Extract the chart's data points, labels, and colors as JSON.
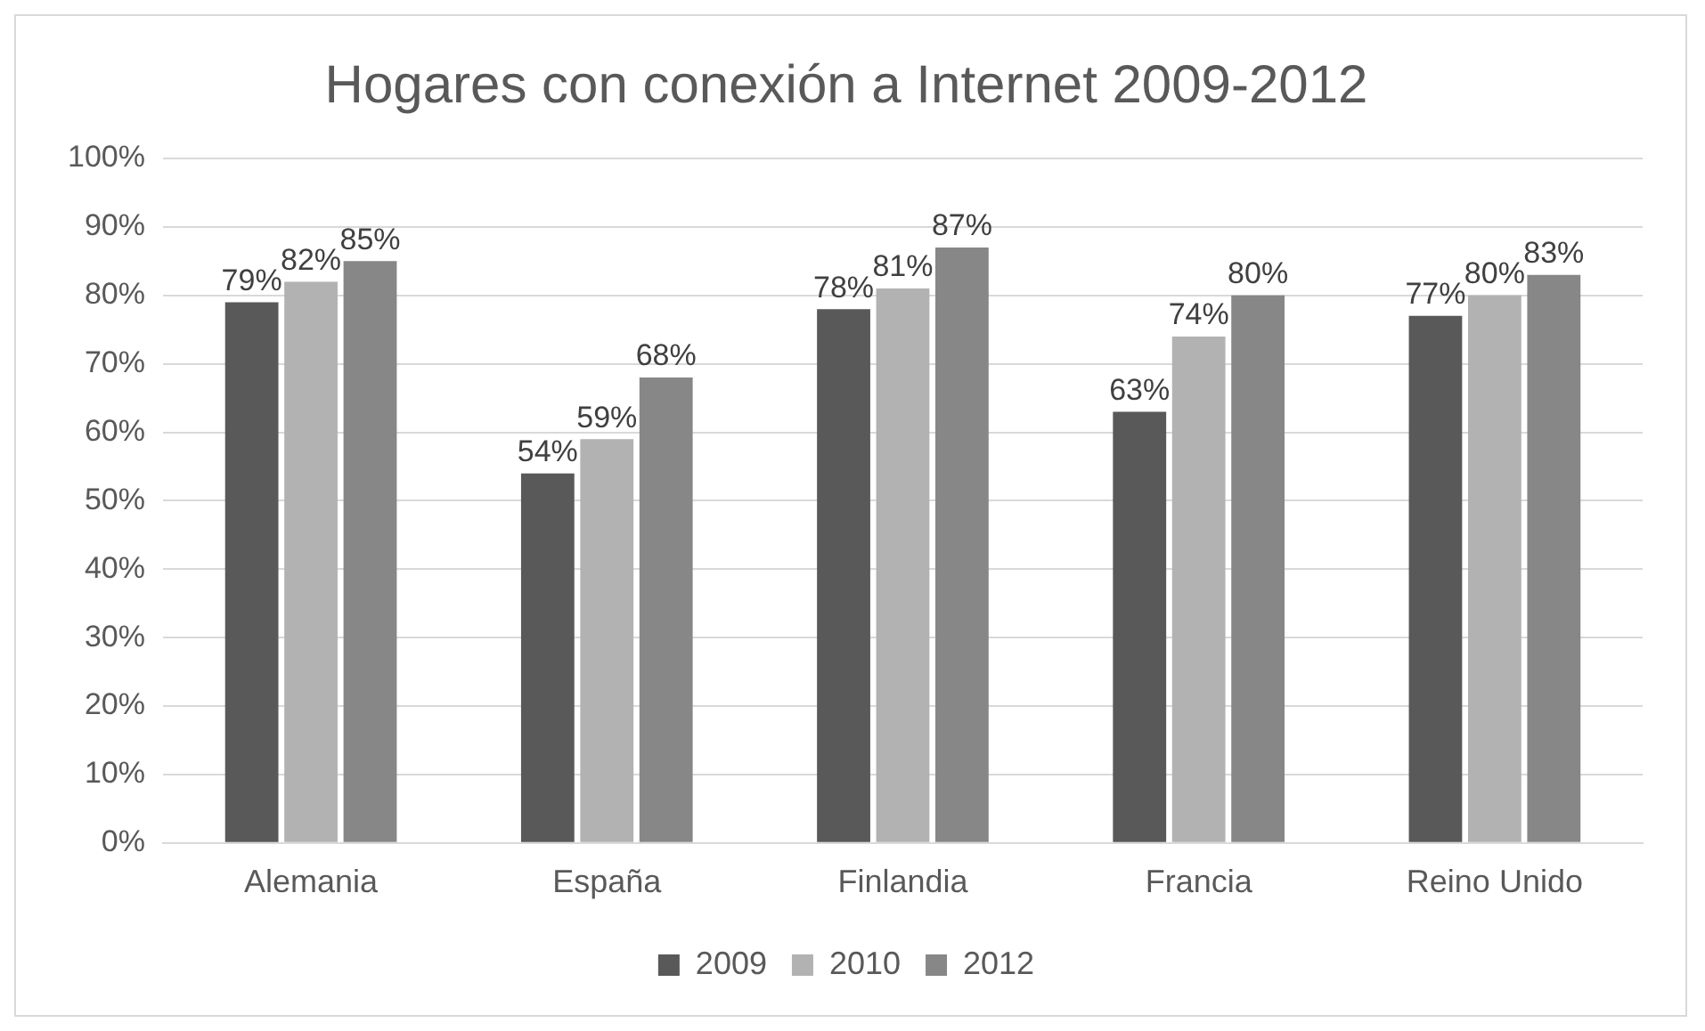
{
  "chart_data": {
    "type": "bar",
    "title": "Hogares con conexión a Internet 2009-2012",
    "categories": [
      "Alemania",
      "España",
      "Finlandia",
      "Francia",
      "Reino Unido"
    ],
    "series": [
      {
        "name": "2009",
        "color": "#595959",
        "values": [
          79,
          54,
          78,
          63,
          77
        ],
        "value_labels": [
          "79%",
          "54%",
          "78%",
          "63%",
          "77%"
        ]
      },
      {
        "name": "2010",
        "color": "#b2b2b2",
        "values": [
          82,
          59,
          81,
          74,
          80
        ],
        "value_labels": [
          "82%",
          "59%",
          "81%",
          "74%",
          "80%"
        ]
      },
      {
        "name": "2012",
        "color": "#878787",
        "values": [
          85,
          68,
          87,
          80,
          83
        ],
        "value_labels": [
          "85%",
          "68%",
          "87%",
          "80%",
          "83%"
        ]
      }
    ],
    "ylim": [
      0,
      100
    ],
    "yticks": [
      {
        "value": 0,
        "label": "0%"
      },
      {
        "value": 10,
        "label": "10%"
      },
      {
        "value": 20,
        "label": "20%"
      },
      {
        "value": 30,
        "label": "30%"
      },
      {
        "value": 40,
        "label": "40%"
      },
      {
        "value": 50,
        "label": "50%"
      },
      {
        "value": 60,
        "label": "60%"
      },
      {
        "value": 70,
        "label": "70%"
      },
      {
        "value": 80,
        "label": "80%"
      },
      {
        "value": 90,
        "label": "90%"
      },
      {
        "value": 100,
        "label": "100%"
      }
    ],
    "grid": "y",
    "legend": "bottom"
  }
}
